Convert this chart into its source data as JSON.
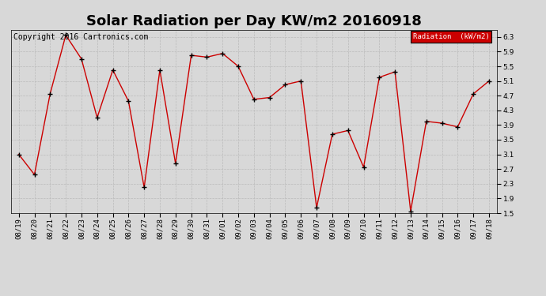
{
  "title": "Solar Radiation per Day KW/m2 20160918",
  "copyright": "Copyright 2016 Cartronics.com",
  "legend_label": "Radiation  (kW/m2)",
  "dates": [
    "08/19",
    "08/20",
    "08/21",
    "08/22",
    "08/23",
    "08/24",
    "08/25",
    "08/26",
    "08/27",
    "08/28",
    "08/29",
    "08/30",
    "08/31",
    "09/01",
    "09/02",
    "09/03",
    "09/04",
    "09/05",
    "09/06",
    "09/07",
    "09/08",
    "09/09",
    "09/10",
    "09/11",
    "09/12",
    "09/13",
    "09/14",
    "09/15",
    "09/16",
    "09/17",
    "09/18"
  ],
  "values": [
    3.1,
    2.55,
    4.75,
    6.35,
    5.7,
    4.1,
    5.4,
    4.55,
    2.2,
    5.4,
    2.85,
    5.8,
    5.75,
    5.85,
    5.5,
    4.6,
    4.65,
    5.0,
    5.1,
    1.65,
    3.65,
    3.75,
    2.75,
    5.2,
    5.35,
    1.55,
    4.0,
    3.95,
    3.85,
    4.75,
    5.1
  ],
  "line_color": "#cc0000",
  "marker": "+",
  "marker_color": "black",
  "marker_size": 5,
  "marker_linewidth": 1.0,
  "ylim": [
    1.5,
    6.5
  ],
  "yticks": [
    1.5,
    1.9,
    2.3,
    2.7,
    3.1,
    3.5,
    3.9,
    4.3,
    4.7,
    5.1,
    5.5,
    5.9,
    6.3
  ],
  "grid_color": "#bbbbbb",
  "background_color": "#d8d8d8",
  "legend_bg": "#cc0000",
  "legend_text_color": "white",
  "title_fontsize": 13,
  "copyright_fontsize": 7,
  "tick_fontsize": 6.5,
  "line_width": 1.0
}
